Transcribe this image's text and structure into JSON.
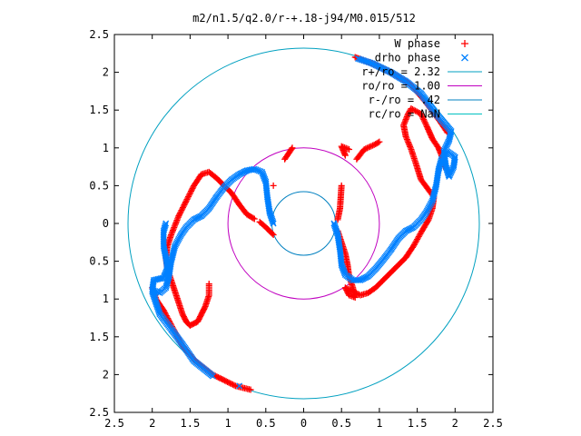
{
  "chart_data": {
    "type": "scatter",
    "title": "m2/n1.5/q2.0/r-+.18-j94/M0.015/512",
    "xlim": [
      -2.5,
      2.5
    ],
    "ylim": [
      -2.5,
      2.5
    ],
    "xticks": [
      -2.5,
      -2,
      -1.5,
      -1,
      -0.5,
      0,
      0.5,
      1,
      1.5,
      2,
      2.5
    ],
    "yticks": [
      -2.5,
      -2,
      -1.5,
      -1,
      -0.5,
      0,
      0.5,
      1,
      1.5,
      2,
      2.5
    ],
    "xtick_labels": [
      "2.5",
      "2",
      "1.5",
      "1",
      "0.5",
      "0",
      "0.5",
      "1",
      "1.5",
      "2",
      "2.5"
    ],
    "ytick_labels": [
      "2.5",
      "2",
      "1.5",
      "1",
      "0.5",
      "0",
      "0.5",
      "1",
      "1.5",
      "2",
      "2.5"
    ],
    "grid": false,
    "legend_position": "top-right",
    "legend": [
      {
        "label": "W phase",
        "color": "#ff0000",
        "marker": "plus"
      },
      {
        "label": "drho phase",
        "color": "#0080ff",
        "marker": "cross"
      },
      {
        "label": "r+/ro = 2.32",
        "color": "#00a0c0",
        "marker": "line"
      },
      {
        "label": "ro/ro = 1.00",
        "color": "#c000c0",
        "marker": "line"
      },
      {
        "label": "r-/ro = .42",
        "color": "#0080c0",
        "marker": "line"
      },
      {
        "label": "rc/ro = NaN",
        "color": "#00c0c0",
        "marker": "line"
      }
    ],
    "circles": [
      {
        "name": "r+/ro",
        "radius": 2.32,
        "color": "#00a0c0"
      },
      {
        "name": "ro/ro",
        "radius": 1.0,
        "color": "#c000c0"
      },
      {
        "name": "r-/ro",
        "radius": 0.42,
        "color": "#0080c0"
      }
    ],
    "series": [
      {
        "name": "W phase",
        "color": "#ff0000",
        "points": [
          [
            0.7,
            0.85
          ],
          [
            0.8,
            0.98
          ],
          [
            0.95,
            1.05
          ],
          [
            1.0,
            1.08
          ],
          [
            0.6,
            0.98
          ],
          [
            0.5,
            1.02
          ],
          [
            0.55,
            0.9
          ],
          [
            0.5,
            0.5
          ],
          [
            0.48,
            0.2
          ],
          [
            0.45,
            0.05
          ],
          [
            -0.4,
            0.5
          ],
          [
            -0.25,
            0.85
          ],
          [
            -0.15,
            1.0
          ],
          [
            -0.65,
            0.06
          ],
          [
            -0.75,
            0.12
          ],
          [
            -0.85,
            0.25
          ],
          [
            -0.95,
            0.4
          ],
          [
            -1.05,
            0.5
          ],
          [
            -1.15,
            0.6
          ],
          [
            -1.25,
            0.68
          ],
          [
            -1.35,
            0.65
          ],
          [
            -1.45,
            0.5
          ],
          [
            -1.55,
            0.3
          ],
          [
            -1.65,
            0.1
          ],
          [
            -1.75,
            -0.15
          ],
          [
            -1.8,
            -0.3
          ],
          [
            -1.82,
            -0.45
          ],
          [
            -1.8,
            -0.6
          ],
          [
            -1.75,
            -0.75
          ],
          [
            -1.7,
            -0.9
          ],
          [
            -1.65,
            -1.05
          ],
          [
            -1.6,
            -1.2
          ],
          [
            -1.55,
            -1.3
          ],
          [
            -1.5,
            -1.35
          ],
          [
            -1.4,
            -1.3
          ],
          [
            -1.35,
            -1.2
          ],
          [
            -1.3,
            -1.1
          ],
          [
            -1.25,
            -0.95
          ],
          [
            -1.25,
            -0.8
          ],
          [
            -0.4,
            -0.15
          ],
          [
            -0.5,
            -0.05
          ],
          [
            -0.58,
            0.02
          ],
          [
            0.45,
            -0.1
          ],
          [
            0.5,
            -0.25
          ],
          [
            0.55,
            -0.4
          ],
          [
            0.58,
            -0.55
          ],
          [
            0.6,
            -0.7
          ],
          [
            0.65,
            -0.85
          ],
          [
            0.68,
            -0.98
          ],
          [
            0.6,
            -0.95
          ],
          [
            0.55,
            -0.85
          ],
          [
            0.75,
            -0.95
          ],
          [
            0.85,
            -0.92
          ],
          [
            0.95,
            -0.85
          ],
          [
            1.05,
            -0.75
          ],
          [
            1.15,
            -0.65
          ],
          [
            1.25,
            -0.55
          ],
          [
            1.35,
            -0.45
          ],
          [
            1.45,
            -0.3
          ],
          [
            1.55,
            -0.12
          ],
          [
            1.65,
            0.05
          ],
          [
            1.7,
            0.2
          ],
          [
            1.72,
            0.35
          ],
          [
            1.55,
            0.58
          ],
          [
            1.48,
            0.8
          ],
          [
            1.42,
            0.98
          ],
          [
            1.35,
            1.15
          ],
          [
            1.32,
            1.3
          ],
          [
            1.38,
            1.45
          ],
          [
            1.42,
            1.52
          ],
          [
            1.55,
            1.45
          ],
          [
            1.62,
            1.3
          ],
          [
            1.7,
            1.12
          ],
          [
            1.78,
            1.0
          ],
          [
            1.83,
            0.88
          ],
          [
            1.85,
            0.75
          ],
          [
            -2.0,
            -0.85
          ],
          [
            -1.95,
            -1.0
          ],
          [
            -1.85,
            -1.15
          ],
          [
            -1.72,
            -1.4
          ],
          [
            -1.6,
            -1.62
          ],
          [
            -1.45,
            -1.8
          ],
          [
            -1.2,
            -2.0
          ],
          [
            -0.9,
            -2.15
          ],
          [
            -0.7,
            -2.2
          ],
          [
            0.68,
            2.2
          ],
          [
            0.9,
            2.12
          ],
          [
            1.15,
            2.0
          ],
          [
            1.4,
            1.85
          ],
          [
            1.6,
            1.62
          ],
          [
            1.8,
            1.35
          ],
          [
            1.9,
            1.2
          ]
        ]
      },
      {
        "name": "drho phase",
        "color": "#0080ff",
        "points": [
          [
            -0.4,
            0.0
          ],
          [
            -0.45,
            0.15
          ],
          [
            -0.48,
            0.35
          ],
          [
            -0.5,
            0.55
          ],
          [
            -0.55,
            0.68
          ],
          [
            -0.65,
            0.72
          ],
          [
            -0.75,
            0.7
          ],
          [
            -0.85,
            0.65
          ],
          [
            -0.95,
            0.58
          ],
          [
            -1.05,
            0.48
          ],
          [
            -1.15,
            0.35
          ],
          [
            -1.25,
            0.2
          ],
          [
            -1.35,
            0.1
          ],
          [
            -1.45,
            0.05
          ],
          [
            -1.55,
            -0.05
          ],
          [
            -1.62,
            -0.15
          ],
          [
            -1.7,
            -0.3
          ],
          [
            -1.75,
            -0.5
          ],
          [
            -1.78,
            -0.7
          ],
          [
            -1.82,
            -0.85
          ],
          [
            -1.9,
            -0.92
          ],
          [
            -2.0,
            -0.88
          ],
          [
            -1.98,
            -0.75
          ],
          [
            -1.85,
            -0.72
          ],
          [
            -1.8,
            -0.6
          ],
          [
            -1.82,
            -0.45
          ],
          [
            -1.85,
            -0.3
          ],
          [
            -1.85,
            -0.1
          ],
          [
            -1.82,
            0.0
          ],
          [
            0.4,
            0.0
          ],
          [
            0.45,
            -0.15
          ],
          [
            0.48,
            -0.35
          ],
          [
            0.5,
            -0.55
          ],
          [
            0.55,
            -0.68
          ],
          [
            0.65,
            -0.75
          ],
          [
            0.75,
            -0.75
          ],
          [
            0.85,
            -0.7
          ],
          [
            0.95,
            -0.6
          ],
          [
            1.05,
            -0.48
          ],
          [
            1.15,
            -0.35
          ],
          [
            1.25,
            -0.2
          ],
          [
            1.35,
            -0.1
          ],
          [
            1.45,
            -0.05
          ],
          [
            1.55,
            0.05
          ],
          [
            1.62,
            0.15
          ],
          [
            1.7,
            0.3
          ],
          [
            1.75,
            0.5
          ],
          [
            1.78,
            0.7
          ],
          [
            1.82,
            0.85
          ],
          [
            1.9,
            0.95
          ],
          [
            2.0,
            0.88
          ],
          [
            1.98,
            0.75
          ],
          [
            1.92,
            0.62
          ],
          [
            1.88,
            0.75
          ],
          [
            1.85,
            0.95
          ],
          [
            1.92,
            1.1
          ],
          [
            1.95,
            1.22
          ],
          [
            1.75,
            1.45
          ],
          [
            1.55,
            1.72
          ],
          [
            1.35,
            1.88
          ],
          [
            1.15,
            2.0
          ],
          [
            0.9,
            2.12
          ],
          [
            0.72,
            2.18
          ],
          [
            -2.0,
            -0.9
          ],
          [
            -1.9,
            -1.2
          ],
          [
            -1.75,
            -1.4
          ],
          [
            -1.6,
            -1.6
          ],
          [
            -1.45,
            -1.82
          ],
          [
            -1.2,
            -2.02
          ],
          [
            -0.85,
            -2.15
          ]
        ]
      }
    ]
  },
  "title": "m2/n1.5/q2.0/r-+.18-j94/M0.015/512"
}
